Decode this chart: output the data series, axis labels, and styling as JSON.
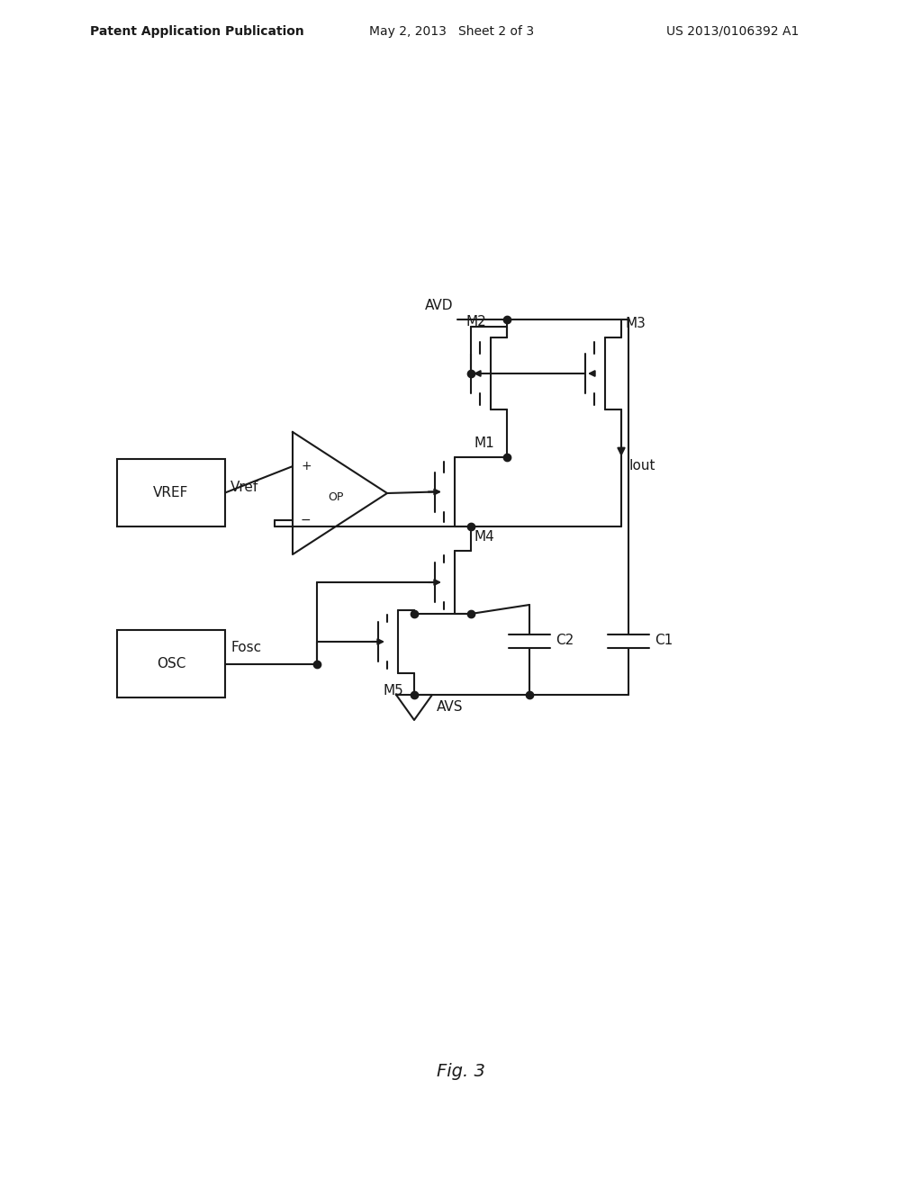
{
  "background_color": "#ffffff",
  "line_color": "#1a1a1a",
  "line_width": 1.5,
  "dot_size": 6,
  "header_bold": "Patent Application Publication",
  "header_date": "May 2, 2013   Sheet 2 of 3",
  "header_patent": "US 2013/0106392 A1",
  "fig_label": "Fig. 3",
  "label_fontsize": 11,
  "small_fontsize": 9
}
